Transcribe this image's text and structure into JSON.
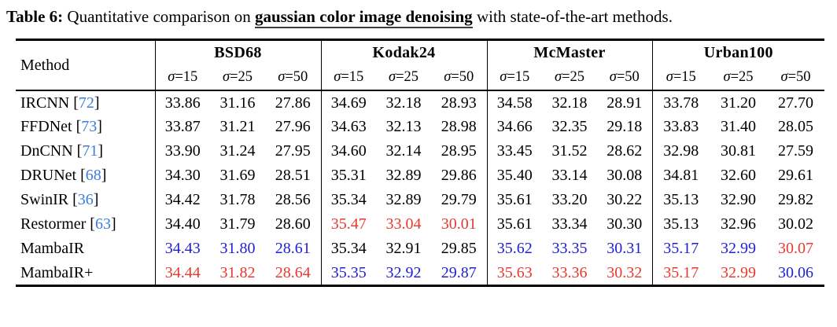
{
  "caption": {
    "label": "Table 6:",
    "text_before": " Quantitative comparison on ",
    "highlight": "gaussian color image denoising",
    "text_after": " with state-of-the-art methods."
  },
  "table": {
    "method_header": "Method",
    "sigma_symbol": "σ",
    "equals_sign": "=",
    "bracket_open": "[",
    "bracket_close": "]",
    "groups": [
      {
        "name": "BSD68",
        "sigmas": [
          "15",
          "25",
          "50"
        ]
      },
      {
        "name": "Kodak24",
        "sigmas": [
          "15",
          "25",
          "50"
        ]
      },
      {
        "name": "McMaster",
        "sigmas": [
          "15",
          "25",
          "50"
        ]
      },
      {
        "name": "Urban100",
        "sigmas": [
          "15",
          "25",
          "50"
        ]
      }
    ],
    "rows": [
      {
        "method": "IRCNN",
        "cite": "72",
        "values": [
          "33.86",
          "31.16",
          "27.86",
          "34.69",
          "32.18",
          "28.93",
          "34.58",
          "32.18",
          "28.91",
          "33.78",
          "31.20",
          "27.70"
        ],
        "marks": [
          "k",
          "k",
          "k",
          "k",
          "k",
          "k",
          "k",
          "k",
          "k",
          "k",
          "k",
          "k"
        ]
      },
      {
        "method": "FFDNet",
        "cite": "73",
        "values": [
          "33.87",
          "31.21",
          "27.96",
          "34.63",
          "32.13",
          "28.98",
          "34.66",
          "32.35",
          "29.18",
          "33.83",
          "31.40",
          "28.05"
        ],
        "marks": [
          "k",
          "k",
          "k",
          "k",
          "k",
          "k",
          "k",
          "k",
          "k",
          "k",
          "k",
          "k"
        ]
      },
      {
        "method": "DnCNN",
        "cite": "71",
        "values": [
          "33.90",
          "31.24",
          "27.95",
          "34.60",
          "32.14",
          "28.95",
          "33.45",
          "31.52",
          "28.62",
          "32.98",
          "30.81",
          "27.59"
        ],
        "marks": [
          "k",
          "k",
          "k",
          "k",
          "k",
          "k",
          "k",
          "k",
          "k",
          "k",
          "k",
          "k"
        ]
      },
      {
        "method": "DRUNet",
        "cite": "68",
        "values": [
          "34.30",
          "31.69",
          "28.51",
          "35.31",
          "32.89",
          "29.86",
          "35.40",
          "33.14",
          "30.08",
          "34.81",
          "32.60",
          "29.61"
        ],
        "marks": [
          "k",
          "k",
          "k",
          "k",
          "k",
          "k",
          "k",
          "k",
          "k",
          "k",
          "k",
          "k"
        ]
      },
      {
        "method": "SwinIR",
        "cite": "36",
        "values": [
          "34.42",
          "31.78",
          "28.56",
          "35.34",
          "32.89",
          "29.79",
          "35.61",
          "33.20",
          "30.22",
          "35.13",
          "32.90",
          "29.82"
        ],
        "marks": [
          "k",
          "k",
          "k",
          "k",
          "k",
          "k",
          "k",
          "k",
          "k",
          "k",
          "k",
          "k"
        ]
      },
      {
        "method": "Restormer",
        "cite": "63",
        "values": [
          "34.40",
          "31.79",
          "28.60",
          "35.47",
          "33.04",
          "30.01",
          "35.61",
          "33.34",
          "30.30",
          "35.13",
          "32.96",
          "30.02"
        ],
        "marks": [
          "k",
          "k",
          "k",
          "r",
          "r",
          "r",
          "k",
          "k",
          "k",
          "k",
          "k",
          "k"
        ]
      },
      {
        "method": "MambaIR",
        "cite": null,
        "values": [
          "34.43",
          "31.80",
          "28.61",
          "35.34",
          "32.91",
          "29.85",
          "35.62",
          "33.35",
          "30.31",
          "35.17",
          "32.99",
          "30.07"
        ],
        "marks": [
          "b",
          "b",
          "b",
          "k",
          "k",
          "k",
          "b",
          "b",
          "b",
          "b",
          "b",
          "r"
        ]
      },
      {
        "method": "MambaIR+",
        "cite": null,
        "values": [
          "34.44",
          "31.82",
          "28.64",
          "35.35",
          "32.92",
          "29.87",
          "35.63",
          "33.36",
          "30.32",
          "35.17",
          "32.99",
          "30.06"
        ],
        "marks": [
          "r",
          "r",
          "r",
          "b",
          "b",
          "b",
          "r",
          "r",
          "r",
          "r",
          "r",
          "b"
        ]
      }
    ]
  },
  "colors": {
    "best": "#e8392f",
    "second_best": "#2121d4",
    "citation": "#3d7bdc",
    "text": "#000000"
  }
}
